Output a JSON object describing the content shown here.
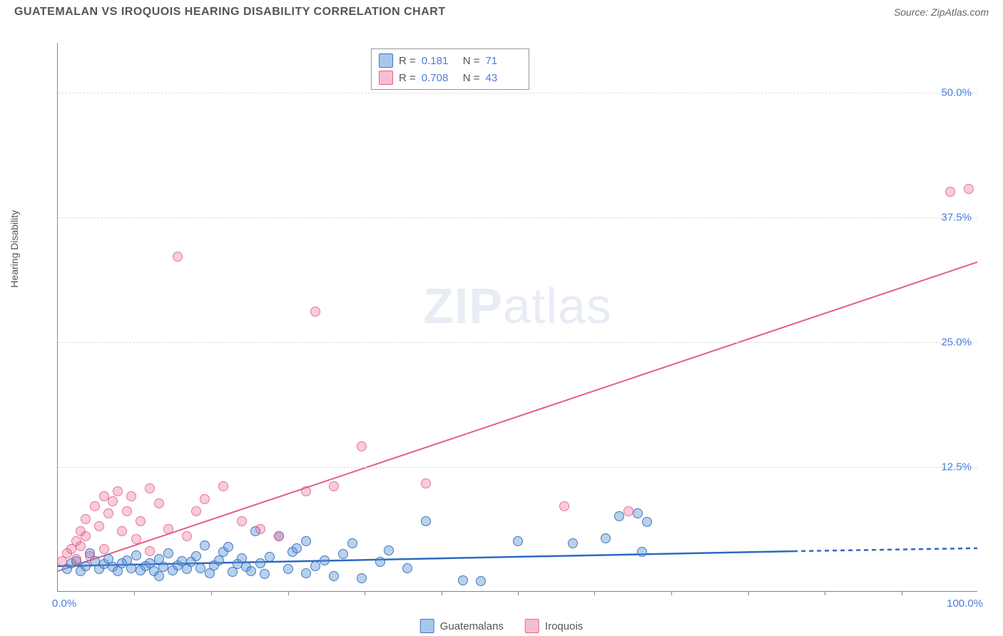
{
  "header": {
    "title": "GUATEMALAN VS IROQUOIS HEARING DISABILITY CORRELATION CHART",
    "source_label": "Source: ",
    "source_value": "ZipAtlas.com"
  },
  "chart": {
    "type": "scatter",
    "y_axis_label": "Hearing Disability",
    "background_color": "#ffffff",
    "grid_color": "#dddddd",
    "axis_color": "#888888",
    "tick_label_color": "#4a7dd8",
    "watermark": "ZIPatlas",
    "xlim": [
      0,
      100
    ],
    "ylim": [
      0,
      55
    ],
    "y_ticks": [
      {
        "v": 12.5,
        "label": "12.5%"
      },
      {
        "v": 25.0,
        "label": "25.0%"
      },
      {
        "v": 37.5,
        "label": "37.5%"
      },
      {
        "v": 50.0,
        "label": "50.0%"
      }
    ],
    "x_ticks_minor": [
      8.33,
      16.67,
      25,
      33.33,
      41.67,
      50,
      58.33,
      66.67,
      75,
      83.33,
      91.67
    ],
    "x_tick_labels": [
      {
        "v": 0,
        "label": "0.0%"
      },
      {
        "v": 100,
        "label": "100.0%"
      }
    ],
    "series": [
      {
        "name": "Guatemalans",
        "color_fill": "rgba(96,153,219,0.45)",
        "color_stroke": "rgba(58,110,180,0.9)",
        "marker_size": 14,
        "r_value": "0.181",
        "n_value": "71",
        "trend": {
          "x1": 0,
          "y1": 2.5,
          "x2": 80,
          "y2": 4.0,
          "x2_dash": 100,
          "y2_dash": 4.3,
          "color": "#2f68c4",
          "width": 2.5
        },
        "points": [
          {
            "x": 1,
            "y": 2.2
          },
          {
            "x": 1.5,
            "y": 2.8
          },
          {
            "x": 2,
            "y": 3.0
          },
          {
            "x": 2.5,
            "y": 2.0
          },
          {
            "x": 3,
            "y": 2.5
          },
          {
            "x": 3.5,
            "y": 3.8
          },
          {
            "x": 4,
            "y": 3.0
          },
          {
            "x": 4.5,
            "y": 2.2
          },
          {
            "x": 5,
            "y": 2.7
          },
          {
            "x": 5.5,
            "y": 3.2
          },
          {
            "x": 6,
            "y": 2.4
          },
          {
            "x": 6.5,
            "y": 2.0
          },
          {
            "x": 7,
            "y": 2.8
          },
          {
            "x": 7.5,
            "y": 3.1
          },
          {
            "x": 8,
            "y": 2.3
          },
          {
            "x": 8.5,
            "y": 3.6
          },
          {
            "x": 9,
            "y": 2.1
          },
          {
            "x": 9.5,
            "y": 2.5
          },
          {
            "x": 10,
            "y": 2.8
          },
          {
            "x": 10.5,
            "y": 2.0
          },
          {
            "x": 11,
            "y": 3.2
          },
          {
            "x": 11,
            "y": 1.5
          },
          {
            "x": 11.5,
            "y": 2.4
          },
          {
            "x": 12,
            "y": 3.8
          },
          {
            "x": 12.5,
            "y": 2.1
          },
          {
            "x": 13,
            "y": 2.6
          },
          {
            "x": 13.5,
            "y": 3.0
          },
          {
            "x": 14,
            "y": 2.2
          },
          {
            "x": 14.5,
            "y": 2.9
          },
          {
            "x": 15,
            "y": 3.5
          },
          {
            "x": 15.5,
            "y": 2.3
          },
          {
            "x": 16,
            "y": 4.6
          },
          {
            "x": 16.5,
            "y": 1.8
          },
          {
            "x": 17,
            "y": 2.6
          },
          {
            "x": 17.5,
            "y": 3.1
          },
          {
            "x": 18,
            "y": 3.9
          },
          {
            "x": 18.5,
            "y": 4.4
          },
          {
            "x": 19,
            "y": 1.9
          },
          {
            "x": 19.5,
            "y": 2.7
          },
          {
            "x": 20,
            "y": 3.3
          },
          {
            "x": 20.5,
            "y": 2.4
          },
          {
            "x": 21,
            "y": 2.0
          },
          {
            "x": 21.5,
            "y": 6.0
          },
          {
            "x": 22,
            "y": 2.8
          },
          {
            "x": 22.5,
            "y": 1.7
          },
          {
            "x": 23,
            "y": 3.4
          },
          {
            "x": 24,
            "y": 5.5
          },
          {
            "x": 25,
            "y": 2.2
          },
          {
            "x": 25.5,
            "y": 3.9
          },
          {
            "x": 26,
            "y": 4.3
          },
          {
            "x": 27,
            "y": 1.8
          },
          {
            "x": 27,
            "y": 5.0
          },
          {
            "x": 28,
            "y": 2.5
          },
          {
            "x": 29,
            "y": 3.1
          },
          {
            "x": 30,
            "y": 1.5
          },
          {
            "x": 31,
            "y": 3.7
          },
          {
            "x": 32,
            "y": 4.8
          },
          {
            "x": 33,
            "y": 1.3
          },
          {
            "x": 35,
            "y": 2.9
          },
          {
            "x": 36,
            "y": 4.1
          },
          {
            "x": 38,
            "y": 2.3
          },
          {
            "x": 40,
            "y": 7.0
          },
          {
            "x": 44,
            "y": 1.1
          },
          {
            "x": 46,
            "y": 1.0
          },
          {
            "x": 50,
            "y": 5.0
          },
          {
            "x": 56,
            "y": 4.8
          },
          {
            "x": 59.5,
            "y": 5.3
          },
          {
            "x": 61,
            "y": 7.5
          },
          {
            "x": 63,
            "y": 7.8
          },
          {
            "x": 64,
            "y": 6.9
          },
          {
            "x": 63.5,
            "y": 3.9
          }
        ]
      },
      {
        "name": "Iroquois",
        "color_fill": "rgba(236,110,150,0.35)",
        "color_stroke": "rgba(220,80,120,0.7)",
        "marker_size": 14,
        "r_value": "0.708",
        "n_value": "43",
        "trend": {
          "x1": 0,
          "y1": 2.0,
          "x2": 100,
          "y2": 33.0,
          "color": "#e75b8a",
          "width": 2
        },
        "points": [
          {
            "x": 0.5,
            "y": 3.0
          },
          {
            "x": 1,
            "y": 3.8
          },
          {
            "x": 1.5,
            "y": 4.2
          },
          {
            "x": 2,
            "y": 5.0
          },
          {
            "x": 2,
            "y": 3.2
          },
          {
            "x": 2.5,
            "y": 4.5
          },
          {
            "x": 2.5,
            "y": 6.0
          },
          {
            "x": 3,
            "y": 5.5
          },
          {
            "x": 3,
            "y": 7.2
          },
          {
            "x": 3.5,
            "y": 3.5
          },
          {
            "x": 4,
            "y": 8.5
          },
          {
            "x": 4.5,
            "y": 6.5
          },
          {
            "x": 5,
            "y": 4.2
          },
          {
            "x": 5,
            "y": 9.5
          },
          {
            "x": 5.5,
            "y": 7.8
          },
          {
            "x": 6,
            "y": 9.0
          },
          {
            "x": 6.5,
            "y": 10.0
          },
          {
            "x": 7,
            "y": 6.0
          },
          {
            "x": 7.5,
            "y": 8.0
          },
          {
            "x": 8,
            "y": 9.5
          },
          {
            "x": 8.5,
            "y": 5.2
          },
          {
            "x": 9,
            "y": 7.0
          },
          {
            "x": 10,
            "y": 10.3
          },
          {
            "x": 10,
            "y": 4.0
          },
          {
            "x": 11,
            "y": 8.8
          },
          {
            "x": 12,
            "y": 6.2
          },
          {
            "x": 13,
            "y": 33.5
          },
          {
            "x": 14,
            "y": 5.5
          },
          {
            "x": 15,
            "y": 8.0
          },
          {
            "x": 16,
            "y": 9.2
          },
          {
            "x": 18,
            "y": 10.5
          },
          {
            "x": 20,
            "y": 7.0
          },
          {
            "x": 22,
            "y": 6.2
          },
          {
            "x": 24,
            "y": 5.5
          },
          {
            "x": 27,
            "y": 10.0
          },
          {
            "x": 28,
            "y": 28.0
          },
          {
            "x": 30,
            "y": 10.5
          },
          {
            "x": 33,
            "y": 14.5
          },
          {
            "x": 40,
            "y": 10.8
          },
          {
            "x": 55,
            "y": 8.5
          },
          {
            "x": 62,
            "y": 8.0
          },
          {
            "x": 97,
            "y": 40.0
          },
          {
            "x": 99,
            "y": 40.3
          }
        ]
      }
    ],
    "legend_bottom": [
      {
        "swatch": "blue",
        "label": "Guatemalans"
      },
      {
        "swatch": "pink",
        "label": "Iroquois"
      }
    ]
  }
}
